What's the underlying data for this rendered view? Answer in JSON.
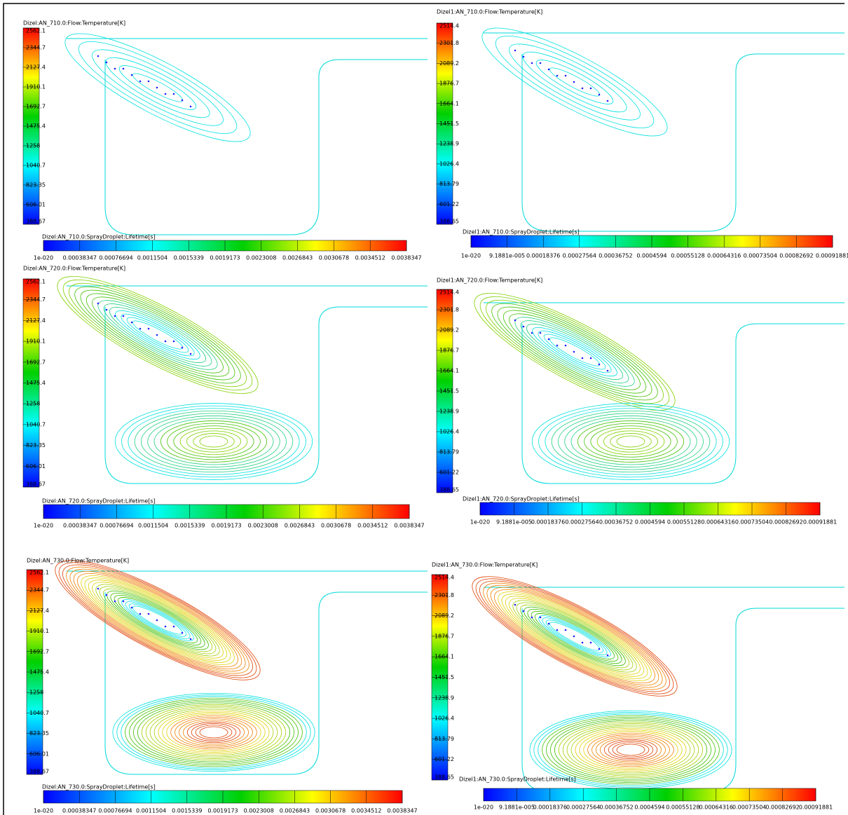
{
  "panels": [
    {
      "temperature_title": "Dizel:AN_710.0:Flow:Temperature[K]",
      "temperature_scale": [
        "2562.1",
        "2344.7",
        "2127.4",
        "1910.1",
        "1692.7",
        "1475.4",
        "1258",
        "1040.7",
        "823.35",
        "606.01",
        "388.67"
      ],
      "lifetime_title": "Dizel:AN_710.0:SprayDroplet:Lifetime[s]",
      "lifetime_scale": [
        "1e-020",
        "0.00038347",
        "0.00076694",
        "0.0011504",
        "0.0015339",
        "0.0019173",
        "0.0023008",
        "0.0026843",
        "0.0030678",
        "0.0034512",
        "0.0038347"
      ]
    },
    {
      "temperature_title": "Dizel1:AN_710.0:Flow:Temperature[K]",
      "temperature_scale": [
        "2514.4",
        "2301.8",
        "2089.2",
        "1876.7",
        "1664.1",
        "1451.5",
        "1238.9",
        "1026.4",
        "813.79",
        "601.22",
        "388.65"
      ],
      "lifetime_title": "Dizel1:AN_710.0:SprayDroplet:Lifetime[s]",
      "lifetime_scale": [
        "1e-020",
        "9.1881e-005",
        "0.00018376",
        "0.00027564",
        "0.00036752",
        "0.0004594",
        "0.00055128",
        "0.00064316",
        "0.00073504",
        "0.00082692",
        "0.00091881"
      ]
    },
    {
      "temperature_title": "Dizel:AN_720.0:Flow:Temperature[K]",
      "temperature_scale": [
        "2562.1",
        "2344.7",
        "2127.4",
        "1910.1",
        "1692.7",
        "1475.4",
        "1258",
        "1040.7",
        "823.35",
        "606.01",
        "388.67"
      ],
      "lifetime_title": "Dizel:AN_720.0:SprayDroplet:Lifetime[s]",
      "lifetime_scale": [
        "1e-020",
        "0.00038347",
        "0.00076694",
        "0.0011504",
        "0.0015339",
        "0.0019173",
        "0.0023008",
        "0.0026843",
        "0.0030678",
        "0.0034512",
        "0.0038347"
      ]
    },
    {
      "temperature_title": "Dizel1:AN_720.0:Flow:Temperature[K]",
      "temperature_scale": [
        "2514.4",
        "2301.8",
        "2089.2",
        "1876.7",
        "1664.1",
        "1451.5",
        "1238.9",
        "1026.4",
        "813.79",
        "601.22",
        "388.65"
      ],
      "lifetime_title": "Dizel1:AN_720.0:SprayDroplet:Lifetime[s]",
      "lifetime_scale": [
        "1e-020",
        "9.1881e-005",
        "0.00018376",
        "0.00027564",
        "0.00036752",
        "0.0004594",
        "0.00055128",
        "0.00064316",
        "0.00073504",
        "0.00082692",
        "0.00091881"
      ]
    },
    {
      "temperature_title": "Dizel:AN_730.0:Flow:Temperature[K]",
      "temperature_scale": [
        "2562.1",
        "2344.7",
        "2127.4",
        "1910.1",
        "1692.7",
        "1475.4",
        "1258",
        "1040.7",
        "823.35",
        "606.01",
        "388.67"
      ],
      "lifetime_title": "Dizel:AN_730.0:SprayDroplet:Lifetime[s]",
      "lifetime_scale": [
        "1e-020",
        "0.00038347",
        "0.00076694",
        "0.0011504",
        "0.0015339",
        "0.0019173",
        "0.0023008",
        "0.0026843",
        "0.0030678",
        "0.0034512",
        "0.0038347"
      ]
    },
    {
      "temperature_title": "Dizel1:AN_730.0:Flow:Temperature[K]",
      "temperature_scale": [
        "2514.4",
        "2301.8",
        "2089.2",
        "1876.7",
        "1664.1",
        "1451.5",
        "1238.9",
        "1026.4",
        "813.79",
        "601.22",
        "388.65"
      ],
      "lifetime_title": "Dizel1:AN_730.0:SprayDroplet:Lifetime[s]",
      "lifetime_scale": [
        "1e-020",
        "9.1881e-005",
        "0.00018376",
        "0.00027564",
        "0.00036752",
        "0.0004594",
        "0.00055128",
        "0.00064316",
        "0.00073504",
        "0.00082692",
        "0.00091881"
      ]
    }
  ]
}
